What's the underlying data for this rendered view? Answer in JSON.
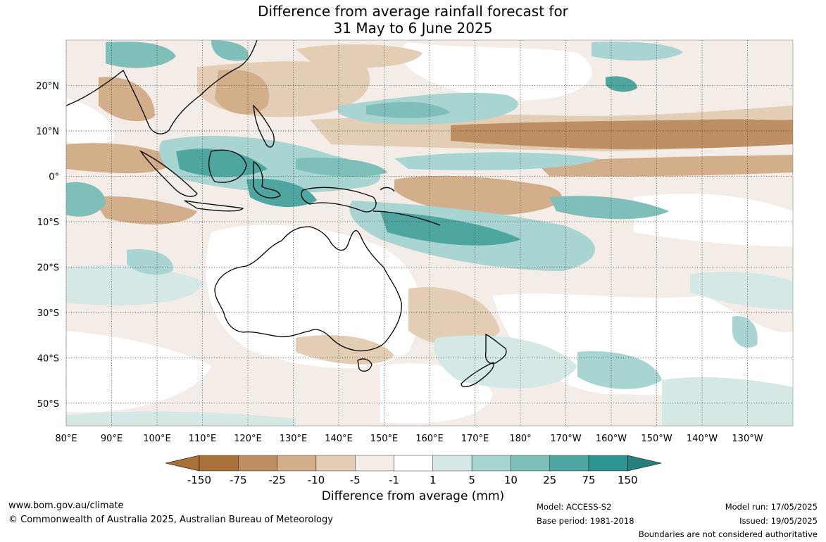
{
  "title": {
    "line1": "Difference from average rainfall forecast for",
    "line2": "31 May to 6 June 2025"
  },
  "map": {
    "lat_labels": [
      "20°N",
      "10°N",
      "0°",
      "10°S",
      "20°S",
      "30°S",
      "40°S",
      "50°S"
    ],
    "lat_values": [
      20,
      10,
      0,
      -10,
      -20,
      -30,
      -40,
      -50
    ],
    "lon_labels": [
      "80°E",
      "90°E",
      "100°E",
      "110°E",
      "120°E",
      "130°E",
      "140°E",
      "150°E",
      "160°E",
      "170°E",
      "180°",
      "170°W",
      "160°W",
      "150°W",
      "140°W",
      "130°W"
    ],
    "lon_values": [
      80,
      90,
      100,
      110,
      120,
      130,
      140,
      150,
      160,
      170,
      180,
      190,
      200,
      210,
      220,
      230
    ],
    "extent": {
      "lon_min": 80,
      "lon_max": 240,
      "lat_min": -55,
      "lat_max": 30
    },
    "gridlines": true
  },
  "colorbar": {
    "title": "Difference from average (mm)",
    "tick_labels": [
      "-150",
      "-75",
      "-25",
      "-10",
      "-5",
      "-1",
      "1",
      "5",
      "10",
      "25",
      "75",
      "150"
    ],
    "colors": [
      "#a9703a",
      "#bd8f63",
      "#d2ae8a",
      "#e4cdb5",
      "#f4ece6",
      "#ffffff",
      "#d4e8e6",
      "#a8d4d1",
      "#7ebfba",
      "#4fa6a1",
      "#2e9590",
      "#26807c"
    ],
    "extend": "both"
  },
  "footer": {
    "website": "www.bom.gov.au/climate",
    "copyright": "© Commonwealth of Australia 2025, Australian Bureau of Meteorology",
    "model": "Model: ACCESS-S2",
    "base_period": "Base period: 1981-2018",
    "model_run": "Model run: 17/05/2025",
    "issued": "Issued: 19/05/2025",
    "disclaimer": "Boundaries are not considered authoritative"
  }
}
